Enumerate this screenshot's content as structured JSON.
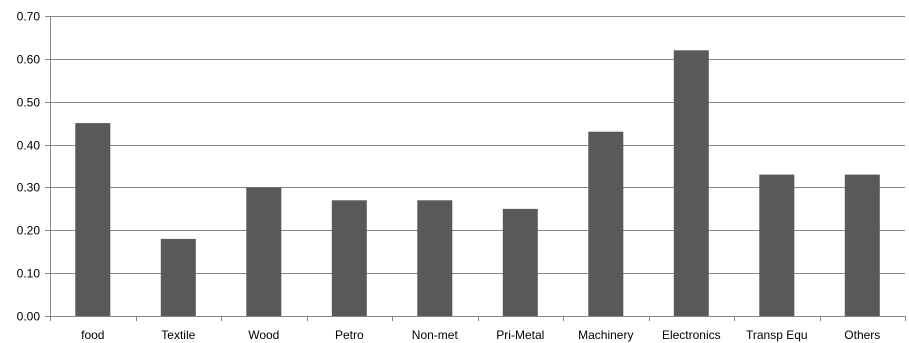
{
  "chart_data": {
    "type": "bar",
    "categories": [
      "food",
      "Textile",
      "Wood",
      "Petro",
      "Non-met",
      "Pri-Metal",
      "Machinery",
      "Electronics",
      "Transp Equ",
      "Others"
    ],
    "values": [
      0.45,
      0.18,
      0.3,
      0.27,
      0.27,
      0.25,
      0.43,
      0.62,
      0.33,
      0.33
    ],
    "ylim": [
      0,
      0.7
    ],
    "yticks": [
      "0.00",
      "0.10",
      "0.20",
      "0.30",
      "0.40",
      "0.50",
      "0.60",
      "0.70"
    ],
    "title": "",
    "xlabel": "",
    "ylabel": "",
    "grid": true,
    "bar_color": "#595959",
    "grid_color": "#868686"
  }
}
